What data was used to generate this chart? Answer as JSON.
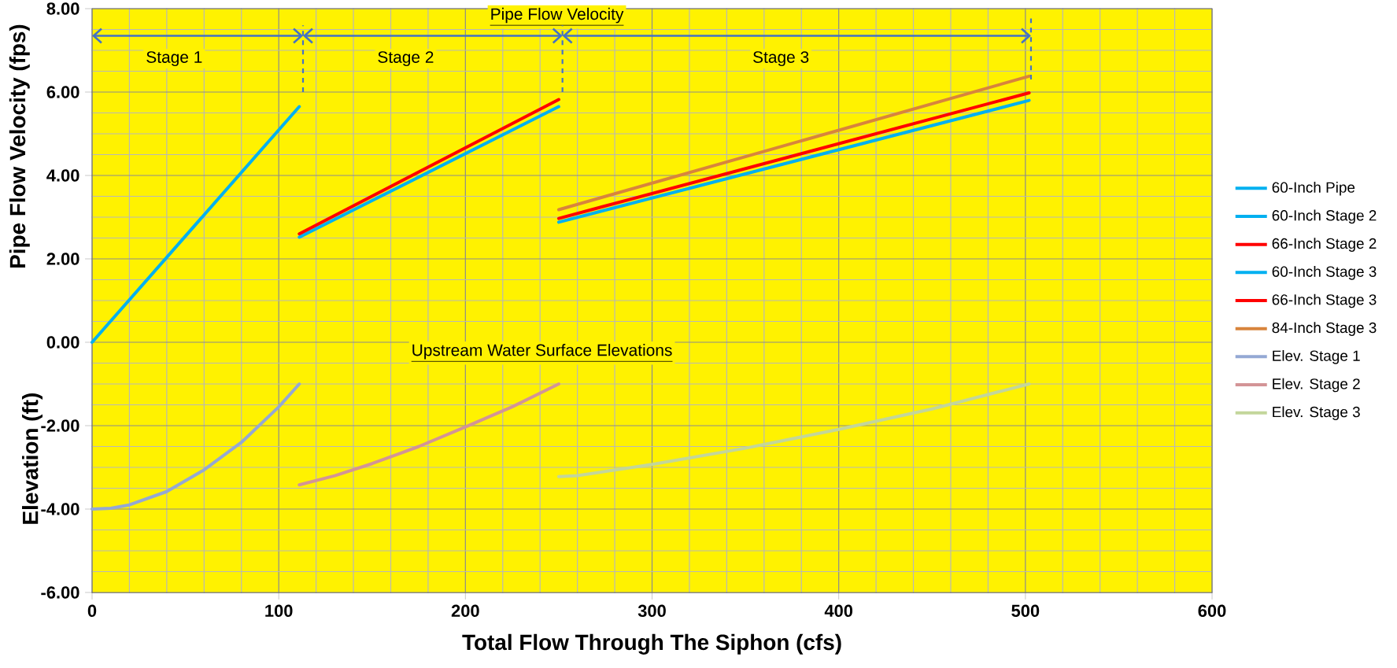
{
  "chart_data": {
    "type": "line",
    "xlabel": "Total Flow Through The Siphon (cfs)",
    "ylabel": "Pipe Flow Velocity (fps)",
    "annotations": [
      "Elevation (ft)",
      "Pipe Flow Velocity",
      "Upstream Water Surface Elevations",
      "Stage 1",
      "Stage 2",
      "Stage 3"
    ],
    "xlim": [
      0,
      600
    ],
    "ylim": [
      -6,
      8
    ],
    "xticks": [
      0,
      100,
      200,
      300,
      400,
      500,
      600
    ],
    "yticks": [
      {
        "value": -6,
        "label": "-6.00"
      },
      {
        "value": -4,
        "label": "-4.00"
      },
      {
        "value": -2,
        "label": "-2.00"
      },
      {
        "value": 0,
        "label": "0.00"
      },
      {
        "value": 2,
        "label": "2.00"
      },
      {
        "value": 4,
        "label": "4.00"
      },
      {
        "value": 6,
        "label": "6.00"
      },
      {
        "value": 8,
        "label": "8.00"
      }
    ],
    "grid": true,
    "legend": "right",
    "marker": "none",
    "line_style": "solid",
    "series": [
      {
        "name": "60-Inch Pipe",
        "color": "#00b0f0",
        "x": [
          0,
          111
        ],
        "values": [
          0,
          5.65
        ]
      },
      {
        "name": "60-Inch Stage 2",
        "color": "#00b0f0",
        "x": [
          111,
          250
        ],
        "values": [
          2.52,
          5.65
        ]
      },
      {
        "name": "66-Inch Stage 2",
        "color": "#ff0000",
        "x": [
          111,
          250
        ],
        "values": [
          2.6,
          5.82
        ]
      },
      {
        "name": "60-Inch Stage 3",
        "color": "#00b0f0",
        "x": [
          250,
          502
        ],
        "values": [
          2.88,
          5.8
        ]
      },
      {
        "name": "66-Inch Stage 3",
        "color": "#ff0000",
        "x": [
          250,
          502
        ],
        "values": [
          2.97,
          5.98
        ]
      },
      {
        "name": "84-Inch Stage 3",
        "color": "#d8843c",
        "x": [
          250,
          502
        ],
        "values": [
          3.18,
          6.38
        ]
      },
      {
        "name": "Elev. Stage 1",
        "color": "#94a8d4",
        "x": [
          0,
          10,
          20,
          40,
          60,
          80,
          100,
          111
        ],
        "values": [
          -4.0,
          -3.98,
          -3.9,
          -3.58,
          -3.06,
          -2.4,
          -1.55,
          -1.0
        ]
      },
      {
        "name": "Elev. Stage 2",
        "color": "#d39496",
        "x": [
          111,
          130,
          150,
          175,
          200,
          225,
          250
        ],
        "values": [
          -3.42,
          -3.2,
          -2.91,
          -2.5,
          -2.03,
          -1.55,
          -1.0
        ]
      },
      {
        "name": "Elev. Stage 3",
        "color": "#c3d69b",
        "x": [
          250,
          260,
          300,
          350,
          400,
          450,
          502
        ],
        "values": [
          -3.22,
          -3.2,
          -2.93,
          -2.54,
          -2.09,
          -1.6,
          -1.0
        ]
      }
    ]
  }
}
